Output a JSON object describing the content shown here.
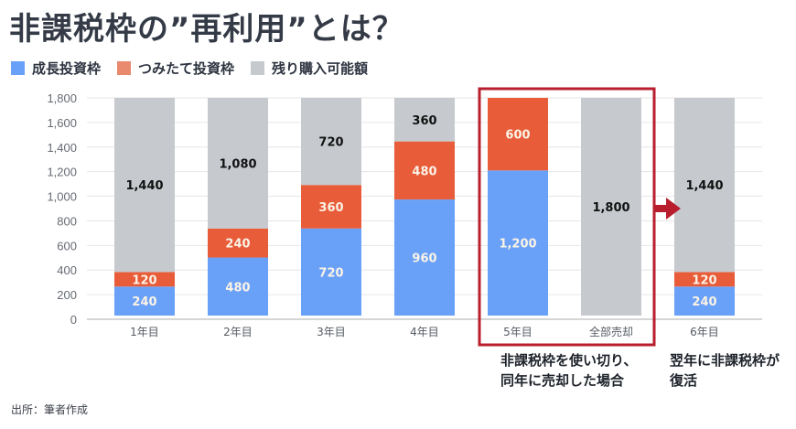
{
  "title": "非課税枠の”再利用”とは？",
  "legend": [
    {
      "label": "成長投資枠",
      "color": "#6aa1f8"
    },
    {
      "label": "つみたて投資枠",
      "color": "#e98a6e"
    },
    {
      "label": "残り購入可能額",
      "color": "#c6cacf"
    }
  ],
  "colors": {
    "growth": "#6aa1f8",
    "tsumitate": "#e85c3a",
    "remaining": "#c6cacf",
    "highlight": "#b81e2d",
    "grid": "#e6e6e6",
    "axis": "#c8c8c8"
  },
  "chart_data": {
    "type": "bar",
    "stacked": true,
    "title": "非課税枠の”再利用”とは？",
    "xlabel": "",
    "ylabel": "",
    "ylim": [
      0,
      1800
    ],
    "yticks": [
      0,
      200,
      400,
      600,
      800,
      1000,
      1200,
      1400,
      1600,
      1800
    ],
    "ytick_labels": [
      "0",
      "200",
      "400",
      "600",
      "800",
      "1,000",
      "1,200",
      "1,400",
      "1,600",
      "1,800"
    ],
    "grid": true,
    "legend_position": "top-left",
    "categories": [
      "1年目",
      "2年目",
      "3年目",
      "4年目",
      "5年目",
      "全部売却",
      "6年目"
    ],
    "series": [
      {
        "name": "成長投資枠",
        "values": [
          240,
          480,
          720,
          960,
          1200,
          0,
          240
        ],
        "labels": [
          "240",
          "480",
          "720",
          "960",
          "1,200",
          "",
          "240"
        ]
      },
      {
        "name": "つみたて投資枠",
        "values": [
          120,
          240,
          360,
          480,
          600,
          0,
          120
        ],
        "labels": [
          "120",
          "240",
          "360",
          "480",
          "600",
          "",
          "120"
        ]
      },
      {
        "name": "残り購入可能額",
        "values": [
          1440,
          1080,
          720,
          360,
          0,
          1800,
          1440
        ],
        "labels": [
          "1,440",
          "1,080",
          "720",
          "360",
          "",
          "1,800",
          "1,440"
        ]
      }
    ],
    "annotations": [
      {
        "type": "box",
        "around": [
          "5年目",
          "全部売却"
        ],
        "text": "非課税枠を使い切り、\n同年に売却した場合"
      },
      {
        "type": "arrow",
        "from": "全部売却",
        "to": "6年目",
        "text": "翌年に非課税枠が\n復活"
      }
    ]
  },
  "notes": {
    "box_line1": "非課税枠を使い切り、",
    "box_line2": "同年に売却した場合",
    "arrow_line1": "翌年に非課税枠が",
    "arrow_line2": "復活"
  },
  "source": "出所：筆者作成"
}
